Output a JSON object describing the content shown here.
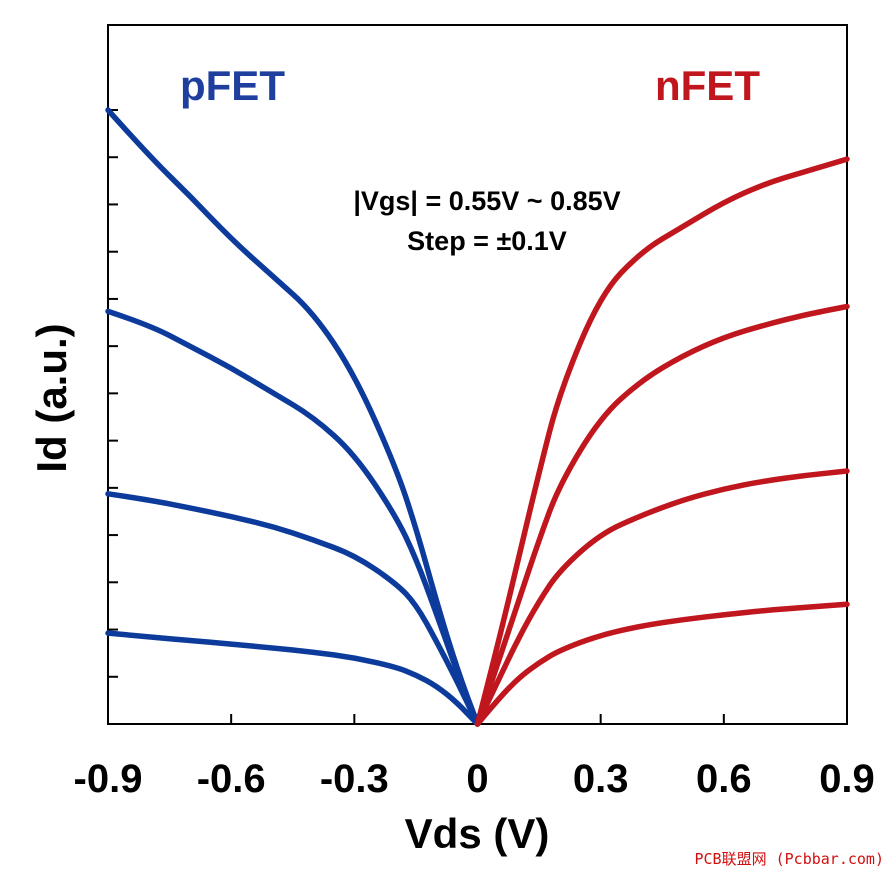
{
  "chart_data": {
    "type": "line",
    "title": "",
    "xlabel": "Vds (V)",
    "ylabel": "Id (a.u.)",
    "xlim": [
      -0.9,
      0.9
    ],
    "ylim": [
      0,
      1
    ],
    "x_ticks": [
      "-0.9",
      "-0.6",
      "-0.3",
      "0",
      "0.3",
      "0.6",
      "0.9"
    ],
    "x_tick_values": [
      -0.9,
      -0.6,
      -0.3,
      0,
      0.3,
      0.6,
      0.9
    ],
    "y_minor_ticks": [
      0.0769,
      0.1538,
      0.2308,
      0.3077,
      0.3846,
      0.4615,
      0.5385,
      0.6154,
      0.6923,
      0.7692,
      0.8462,
      0.9231,
      1.0
    ],
    "legend": [
      {
        "label": "pFET",
        "color": "#1e3f9e"
      },
      {
        "label": "nFET",
        "color": "#c0161d"
      }
    ],
    "annotations": [
      "|Vgs| = 0.55V ~ 0.85V",
      "Step = ±0.1V"
    ],
    "series": [
      {
        "name": "pFET |Vgs|=0.85V",
        "group": "pFET",
        "color": "#0d3b9c",
        "x": [
          -0.9,
          -0.8,
          -0.7,
          -0.6,
          -0.5,
          -0.4,
          -0.3,
          -0.2,
          -0.15,
          -0.1,
          -0.05,
          0
        ],
        "y": [
          1.0,
          0.925,
          0.86,
          0.79,
          0.73,
          0.67,
          0.57,
          0.42,
          0.32,
          0.2,
          0.09,
          0
        ]
      },
      {
        "name": "pFET |Vgs|=0.75V",
        "group": "pFET",
        "color": "#0d3b9c",
        "x": [
          -0.9,
          -0.8,
          -0.7,
          -0.6,
          -0.5,
          -0.4,
          -0.3,
          -0.2,
          -0.15,
          -0.1,
          -0.05,
          0
        ],
        "y": [
          0.672,
          0.65,
          0.615,
          0.58,
          0.54,
          0.5,
          0.44,
          0.34,
          0.27,
          0.18,
          0.085,
          0
        ]
      },
      {
        "name": "pFET |Vgs|=0.65V",
        "group": "pFET",
        "color": "#0d3b9c",
        "x": [
          -0.9,
          -0.8,
          -0.7,
          -0.6,
          -0.5,
          -0.4,
          -0.3,
          -0.2,
          -0.15,
          -0.1,
          -0.05,
          0
        ],
        "y": [
          0.375,
          0.365,
          0.352,
          0.338,
          0.322,
          0.3,
          0.275,
          0.23,
          0.195,
          0.135,
          0.07,
          0
        ]
      },
      {
        "name": "pFET |Vgs|=0.55V",
        "group": "pFET",
        "color": "#0d3b9c",
        "x": [
          -0.9,
          -0.8,
          -0.7,
          -0.6,
          -0.5,
          -0.4,
          -0.3,
          -0.2,
          -0.15,
          -0.1,
          -0.05,
          0
        ],
        "y": [
          0.148,
          0.142,
          0.136,
          0.13,
          0.124,
          0.117,
          0.108,
          0.093,
          0.08,
          0.062,
          0.035,
          0
        ]
      },
      {
        "name": "nFET Vgs=0.85V",
        "group": "nFET",
        "color": "#c0161d",
        "x": [
          0,
          0.05,
          0.1,
          0.15,
          0.2,
          0.3,
          0.4,
          0.5,
          0.6,
          0.7,
          0.8,
          0.9
        ],
        "y": [
          0,
          0.13,
          0.27,
          0.41,
          0.54,
          0.7,
          0.77,
          0.81,
          0.85,
          0.88,
          0.9,
          0.92
        ]
      },
      {
        "name": "nFET Vgs=0.75V",
        "group": "nFET",
        "color": "#c0161d",
        "x": [
          0,
          0.05,
          0.1,
          0.15,
          0.2,
          0.3,
          0.4,
          0.5,
          0.6,
          0.7,
          0.8,
          0.9
        ],
        "y": [
          0,
          0.1,
          0.2,
          0.3,
          0.39,
          0.5,
          0.56,
          0.6,
          0.63,
          0.65,
          0.667,
          0.68
        ]
      },
      {
        "name": "nFET Vgs=0.65V",
        "group": "nFET",
        "color": "#c0161d",
        "x": [
          0,
          0.05,
          0.1,
          0.15,
          0.2,
          0.3,
          0.4,
          0.5,
          0.6,
          0.7,
          0.8,
          0.9
        ],
        "y": [
          0,
          0.07,
          0.14,
          0.2,
          0.25,
          0.31,
          0.34,
          0.365,
          0.383,
          0.396,
          0.405,
          0.412
        ]
      },
      {
        "name": "nFET Vgs=0.55V",
        "group": "nFET",
        "color": "#c0161d",
        "x": [
          0,
          0.05,
          0.1,
          0.15,
          0.2,
          0.3,
          0.4,
          0.5,
          0.6,
          0.7,
          0.8,
          0.9
        ],
        "y": [
          0,
          0.04,
          0.075,
          0.1,
          0.12,
          0.145,
          0.16,
          0.17,
          0.178,
          0.185,
          0.19,
          0.195
        ]
      }
    ]
  },
  "watermark": {
    "text": "PCB联盟网 (Pcbbar.com)",
    "color": "#d01010"
  }
}
